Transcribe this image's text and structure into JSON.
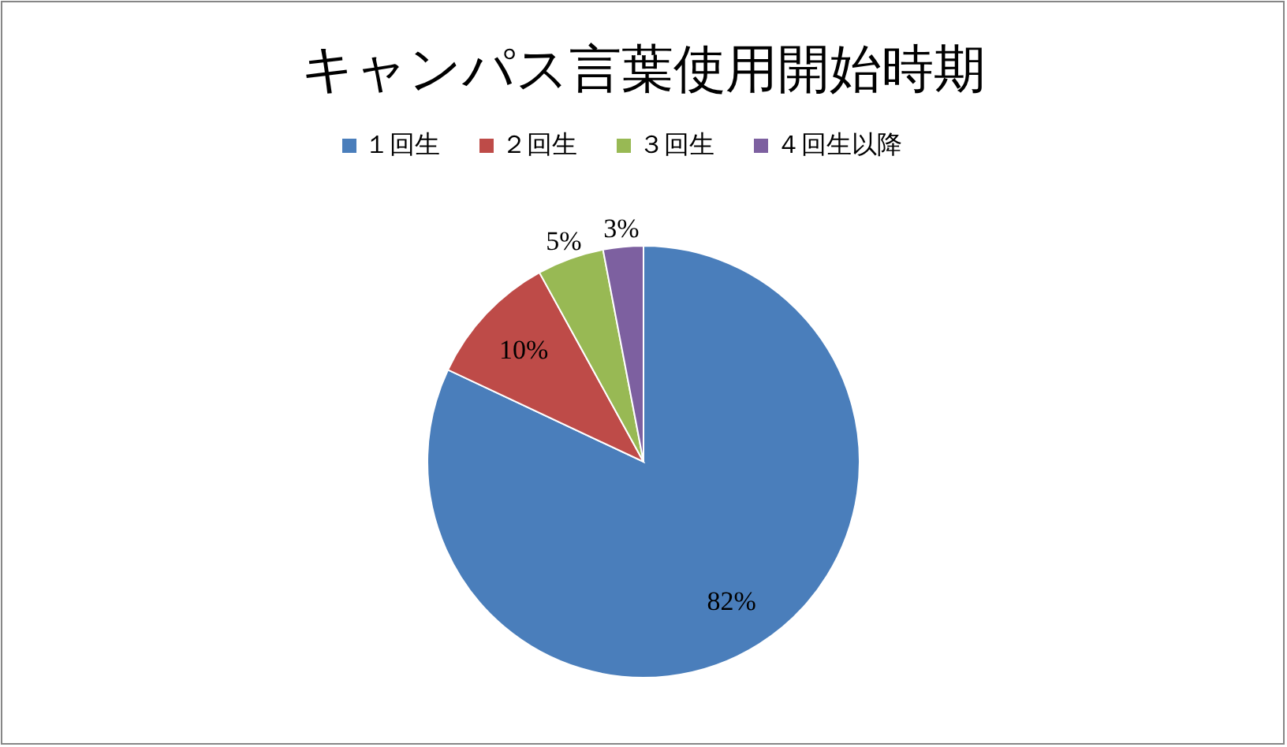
{
  "chart_data": {
    "type": "pie",
    "title": "キャンパス言葉使用開始時期",
    "categories": [
      "１回生",
      "２回生",
      "３回生",
      "４回生以降"
    ],
    "values": [
      82,
      10,
      5,
      3
    ],
    "colors": [
      "#4a7ebb",
      "#be4b48",
      "#98b954",
      "#7d60a0"
    ],
    "value_labels": [
      "82%",
      "10%",
      "5%",
      "3%"
    ],
    "legend": "top"
  }
}
